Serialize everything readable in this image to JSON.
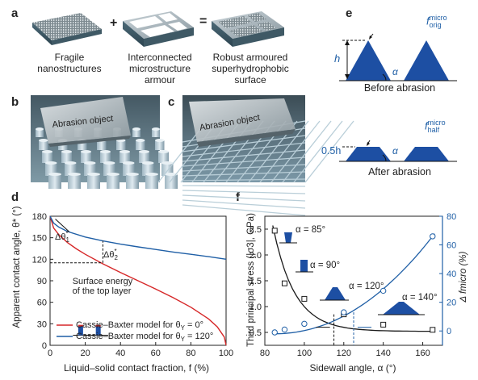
{
  "figure": {
    "panel_a": {
      "letter": "a",
      "plus": "+",
      "equals": "=",
      "captions": [
        "Fragile\nnanostructures",
        "Interconnected\nmicrostructure\narmour",
        "Robust armoured\nsuperhydrophobic\nsurface"
      ]
    },
    "panel_b": {
      "letter": "b",
      "label": "Abrasion object"
    },
    "panel_c": {
      "letter": "c",
      "label": "Abrasion object"
    },
    "panel_e": {
      "letter": "e",
      "h_label": "h",
      "alpha": "α",
      "f_orig": "f",
      "f_orig_sup": "micro",
      "f_orig_sub": "orig",
      "before": "Before abrasion",
      "half_label": "0.5h",
      "f_half": "f",
      "f_half_sup": "micro",
      "f_half_sub": "half",
      "after": "After abrasion"
    },
    "colors": {
      "red": "#d62728",
      "blue": "#1f5fa6",
      "dark": "#1a1a1a",
      "struct": "#1d4fa3"
    }
  },
  "chart_data": [
    {
      "panel": "d",
      "type": "line",
      "xlabel": "Liquid–solid contact fraction, f (%)",
      "ylabel": "Apparent contact angle, θ* (°)",
      "xlim": [
        0,
        100
      ],
      "ylim": [
        0,
        180
      ],
      "xticks": [
        0,
        20,
        40,
        60,
        80,
        100
      ],
      "yticks": [
        0,
        30,
        60,
        90,
        120,
        150,
        180
      ],
      "series": [
        {
          "name": "Cassie–Baxter model for θY = 0°",
          "color": "#d62728",
          "x": [
            0,
            2,
            5,
            10,
            15,
            20,
            30,
            40,
            50,
            60,
            70,
            80,
            90,
            95,
            99,
            100
          ],
          "y": [
            180,
            163.6,
            154.2,
            143.1,
            134.4,
            126.9,
            113.6,
            101.5,
            90,
            78.5,
            66.4,
            53.1,
            36.9,
            25.8,
            11.5,
            0
          ]
        },
        {
          "name": "Cassie–Baxter model for θY = 120°",
          "color": "#1f5fa6",
          "x": [
            0,
            2,
            5,
            10,
            20,
            30,
            40,
            50,
            60,
            70,
            80,
            90,
            100
          ],
          "y": [
            180,
            170.4,
            164.8,
            158.6,
            151.0,
            145.6,
            141.1,
            137.2,
            133.6,
            130.1,
            126.9,
            123.6,
            120
          ]
        }
      ],
      "annotations": {
        "delta1": "Δθ",
        "delta1_sub": "1",
        "delta2": "Δθ",
        "delta2_sub": "2",
        "star": "*",
        "surface_energy": [
          "Surface energy",
          "of the top layer"
        ]
      },
      "legend": {
        "red": "Cassie–Baxter model for θ",
        "red_sub": "Y",
        "red_tail": " = 0°",
        "blue": "Cassie–Baxter model for θ",
        "blue_sub": "Y",
        "blue_tail": " = 120°"
      }
    },
    {
      "panel": "f",
      "type": "scatter",
      "xlabel": "Sidewall angle, α (°)",
      "ylabel_left": "Third principal stress (|σ3|, GPa)",
      "ylabel_right": "Δ fmicro (%)",
      "xlim": [
        80,
        170
      ],
      "ylim_left": [
        0.25,
        2.75
      ],
      "ylim_right": [
        -10,
        80
      ],
      "xticks": [
        80,
        100,
        120,
        140,
        160
      ],
      "yticks_left": [
        0.5,
        1.0,
        1.5,
        2.0,
        2.5
      ],
      "yticks_right": [
        0,
        20,
        40,
        60,
        80
      ],
      "series": [
        {
          "name": "stress",
          "axis": "left",
          "color": "#1a1a1a",
          "marker": "square",
          "x": [
            85,
            90,
            100,
            120,
            140,
            165
          ],
          "y": [
            2.47,
            1.45,
            1.15,
            0.85,
            0.65,
            0.55
          ]
        },
        {
          "name": "delta f",
          "axis": "right",
          "color": "#1f5fa6",
          "marker": "circle",
          "x": [
            85,
            90,
            100,
            120,
            140,
            165
          ],
          "y": [
            -1,
            1,
            5,
            13,
            28,
            66
          ]
        }
      ],
      "angle_labels": [
        "α = 85°",
        "α = 90°",
        "α = 120°",
        "α = 140°"
      ]
    }
  ]
}
